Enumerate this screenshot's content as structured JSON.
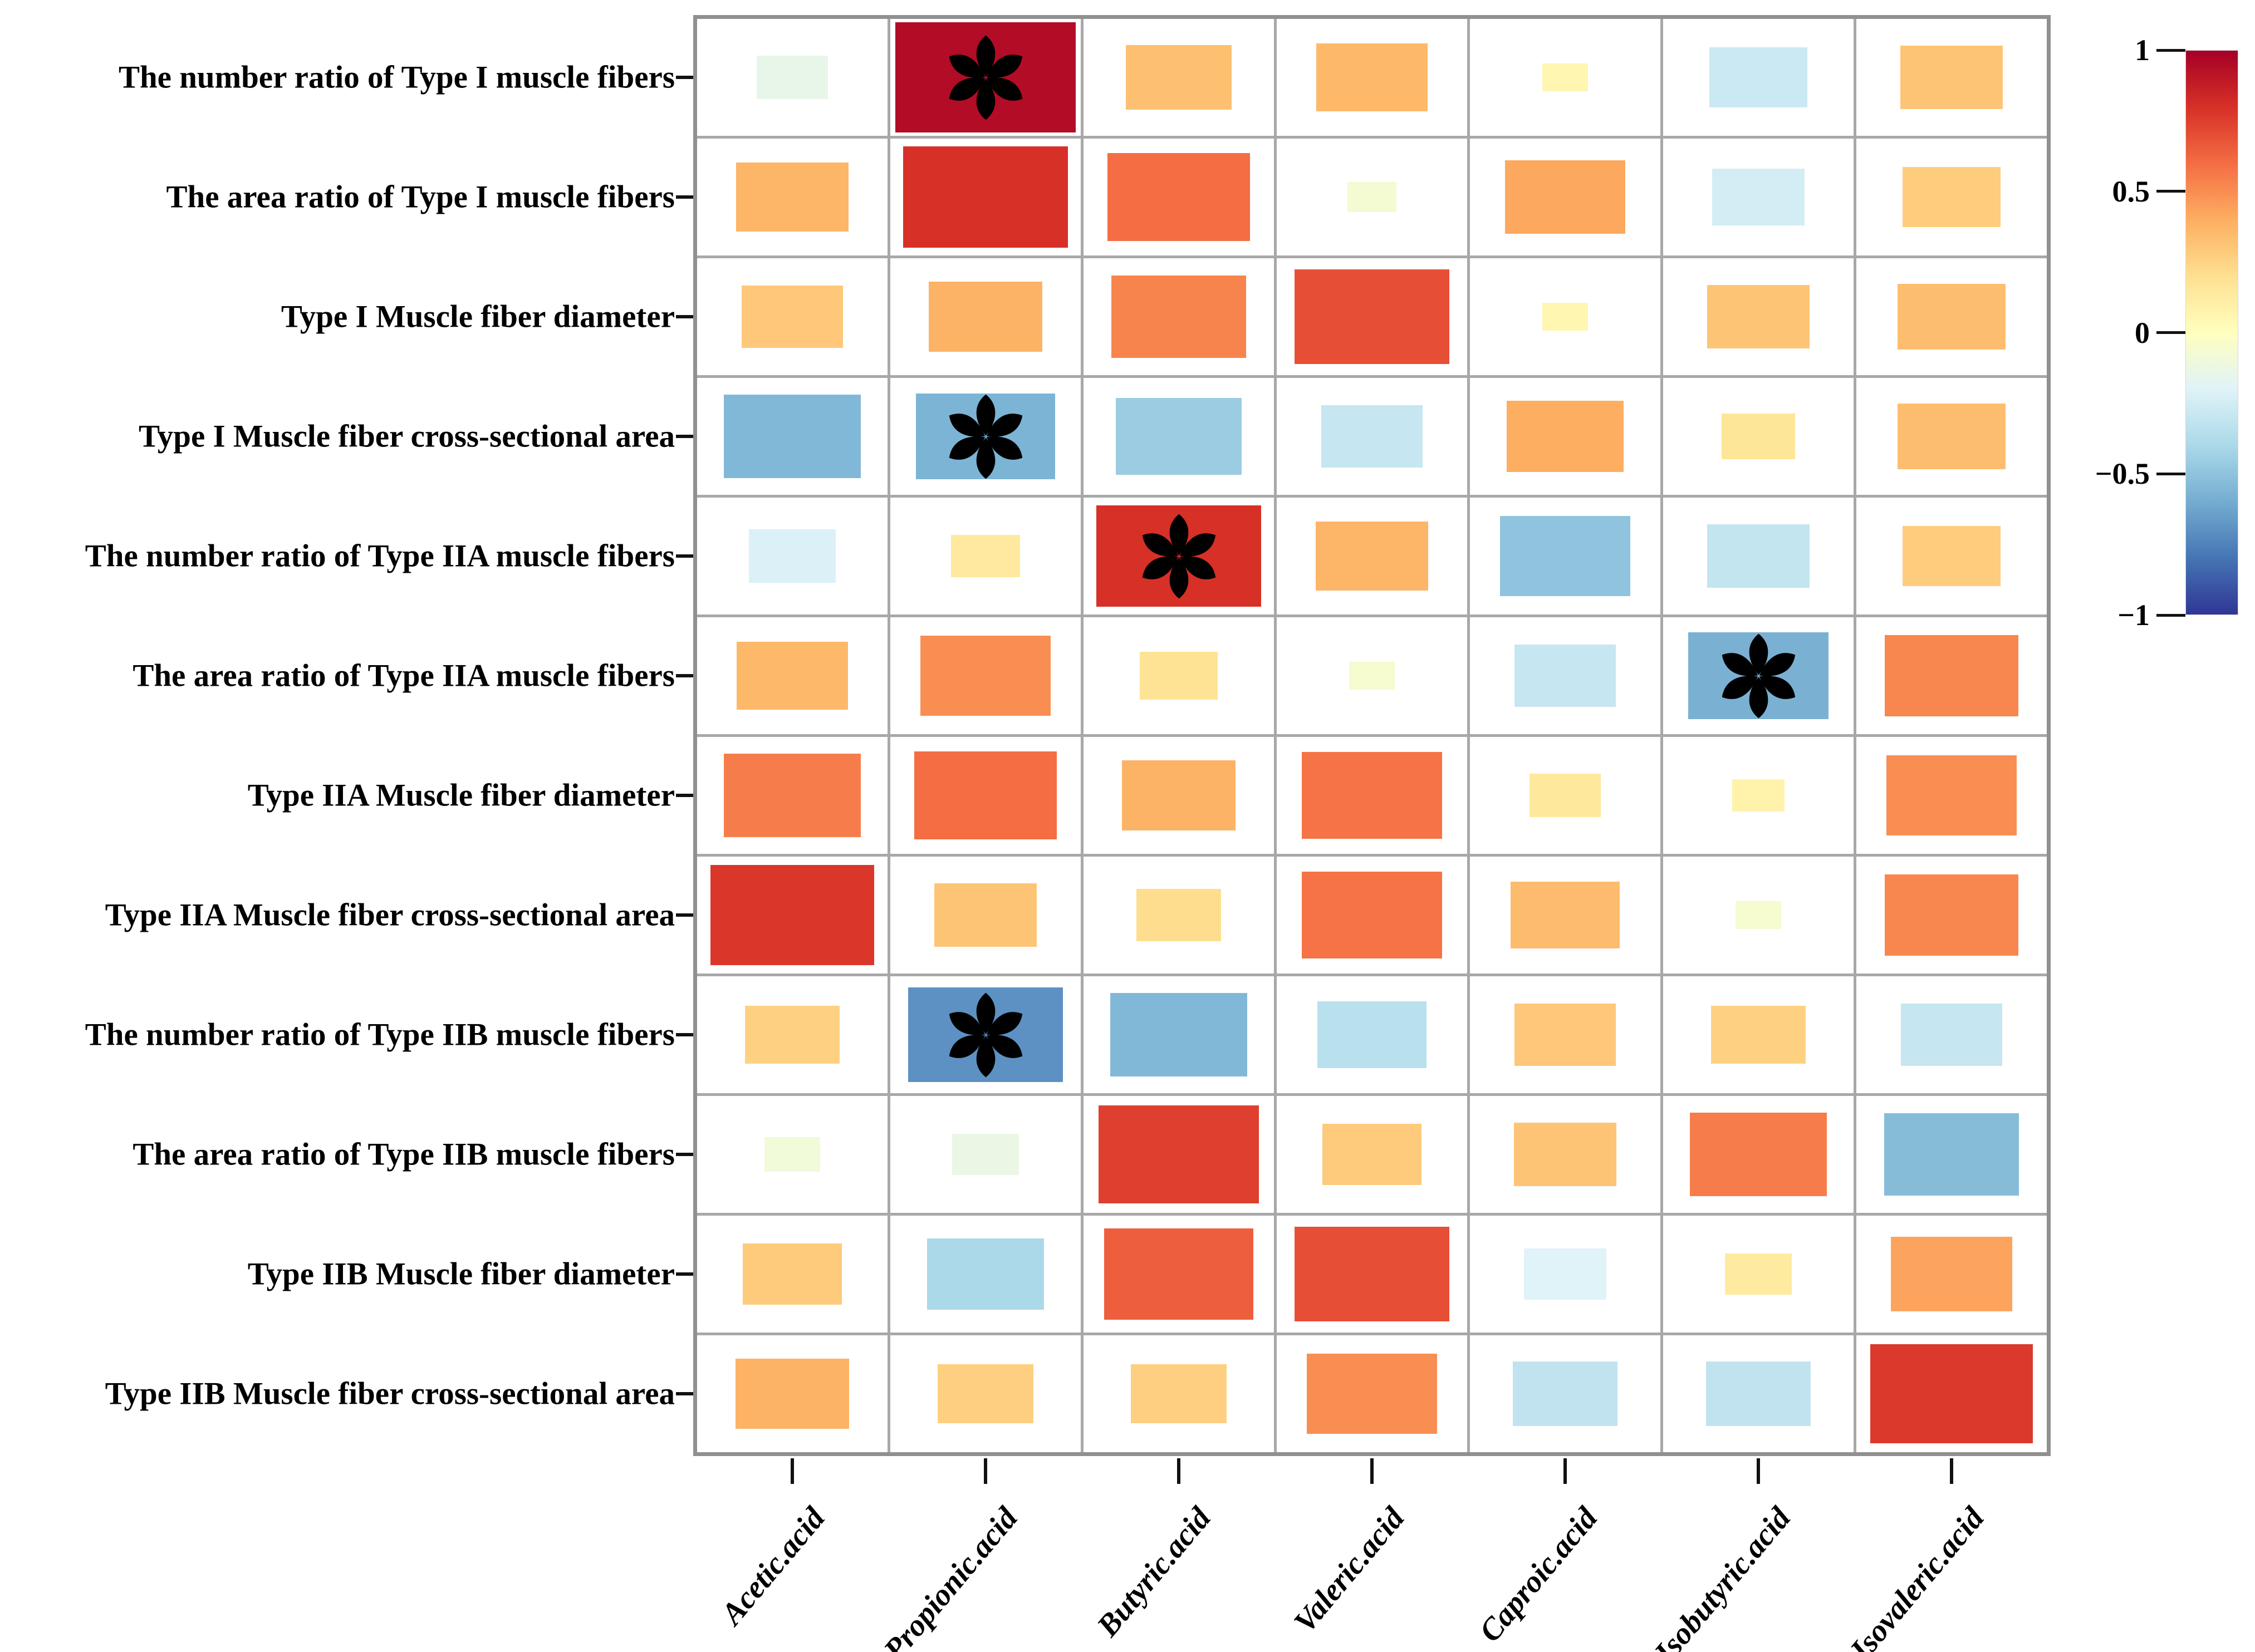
{
  "chart_data": {
    "type": "heatmap",
    "subtype": "correlation-matrix-sized-rectangles",
    "title": "",
    "rows": [
      "The number ratio of Type I muscle fibers",
      "The area ratio of Type I muscle fibers",
      "Type I Muscle fiber diameter",
      "Type I Muscle fiber cross-sectional area",
      "The number ratio of Type IIA muscle fibers",
      "The area ratio of Type IIA muscle fibers",
      "Type IIA Muscle fiber diameter",
      "Type IIA Muscle fiber cross-sectional area",
      "The number ratio of Type IIB muscle fibers",
      "The area ratio of Type IIB muscle fibers",
      "Type IIB Muscle fiber diameter",
      "Type IIB Muscle fiber cross-sectional area"
    ],
    "columns": [
      "Acetic.acid",
      "Propionic.acid",
      "Butyric.acid",
      "Valeric.acid",
      "Caproic.acid",
      "Isobutyric.acid",
      "Isovaleric.acid"
    ],
    "values": [
      [
        -0.15,
        0.95,
        0.33,
        0.36,
        0.06,
        -0.28,
        0.31
      ],
      [
        0.37,
        0.8,
        0.6,
        -0.07,
        0.42,
        -0.25,
        0.28
      ],
      [
        0.3,
        0.38,
        0.53,
        0.7,
        0.06,
        0.31,
        0.34
      ],
      [
        -0.55,
        -0.57,
        -0.46,
        -0.3,
        0.4,
        0.16,
        0.34
      ],
      [
        -0.22,
        0.14,
        0.8,
        0.37,
        -0.5,
        -0.31,
        0.28
      ],
      [
        0.36,
        0.5,
        0.18,
        -0.06,
        -0.3,
        -0.58,
        0.52
      ],
      [
        0.55,
        0.6,
        0.38,
        0.58,
        0.15,
        0.08,
        0.5
      ],
      [
        0.78,
        0.31,
        0.21,
        0.58,
        0.35,
        -0.06,
        0.52
      ],
      [
        0.26,
        -0.7,
        -0.55,
        -0.35,
        0.3,
        0.26,
        -0.3
      ],
      [
        -0.09,
        -0.13,
        0.75,
        0.29,
        0.31,
        0.55,
        -0.53
      ],
      [
        0.29,
        -0.4,
        0.65,
        0.7,
        -0.2,
        0.13,
        0.43
      ],
      [
        0.38,
        0.27,
        0.27,
        0.5,
        -0.32,
        -0.32,
        0.77
      ]
    ],
    "significant_cells": [
      [
        1,
        2
      ],
      [
        4,
        2
      ],
      [
        5,
        3
      ],
      [
        6,
        6
      ],
      [
        9,
        2
      ]
    ],
    "significance_marker": "✻",
    "size_encoding": "rectangle side proportional to sqrt(|r|)",
    "legend_position": "right",
    "colorbar": {
      "min": -1,
      "max": 1,
      "tick_labels": [
        "1",
        "0.5",
        "0",
        "−0.5",
        "−1"
      ],
      "colormap": "RdYlBu"
    },
    "palette": [
      {
        "value": -1.0,
        "color": "#313695"
      },
      {
        "value": -0.8,
        "color": "#4575b4"
      },
      {
        "value": -0.6,
        "color": "#74add1"
      },
      {
        "value": -0.4,
        "color": "#abd9e9"
      },
      {
        "value": -0.2,
        "color": "#e0f3f8"
      },
      {
        "value": 0.0,
        "color": "#ffffbf"
      },
      {
        "value": 0.2,
        "color": "#fee090"
      },
      {
        "value": 0.4,
        "color": "#fdae61"
      },
      {
        "value": 0.6,
        "color": "#f46d43"
      },
      {
        "value": 0.8,
        "color": "#d73027"
      },
      {
        "value": 1.0,
        "color": "#a50026"
      }
    ],
    "xlim": [
      -1,
      1
    ],
    "grid_on": true
  },
  "colors": {
    "background": "#ffffff",
    "grid_line": "#a8a8a8",
    "outer_border": "#909090",
    "axis_tick": "#111111",
    "label_text": "#000000",
    "marker": "#000000"
  }
}
